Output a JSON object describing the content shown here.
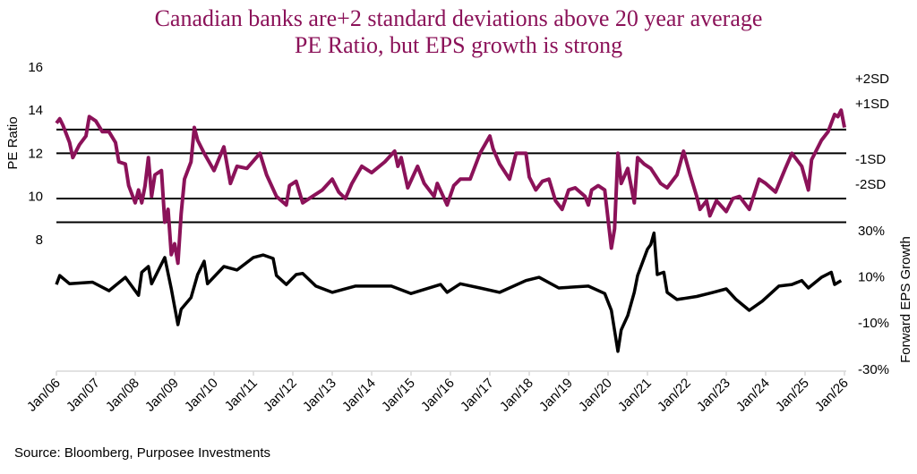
{
  "chart_data": {
    "type": "line",
    "title": [
      "Canadian banks are+2 standard deviations above 20 year average",
      "PE Ratio, but EPS growth is strong"
    ],
    "source": "Source: Bloomberg, Purposee Investments",
    "ylabel_left": "PE Ratio",
    "ylabel_right": "Forward EPS Growth",
    "yticks_left": [
      8,
      10,
      12,
      14,
      16
    ],
    "ylim_left": [
      8,
      16
    ],
    "yticks_right": [
      "30%",
      "10%",
      "-10%",
      "-30%"
    ],
    "yticks_right_values": [
      30,
      10,
      -10,
      -30
    ],
    "xticks": [
      "Jan/06",
      "Jan/07",
      "Jan/08",
      "Jan/09",
      "Jan/10",
      "Jan/11",
      "Jan/12",
      "Jan/13",
      "Jan/14",
      "Jan/15",
      "Jan/16",
      "Jan/17",
      "Jan/18",
      "Jan/19",
      "Jan/20",
      "Jan/21",
      "Jan/22",
      "Jan/23",
      "Jan/24",
      "Jan/25",
      "Jan/26"
    ],
    "xlim": [
      "2006-01",
      "2026-03"
    ],
    "grid": false,
    "sd_lines": [
      13.1,
      12.0,
      9.9,
      8.8
    ],
    "sd_labels": [
      "+2SD",
      "+1SD",
      "-1SD",
      "-2SD"
    ],
    "colors": {
      "pe": "#8B1259",
      "eps": "#000000",
      "title": "#8B1259"
    },
    "series": [
      {
        "axis": "left",
        "points": [
          [
            "2006-01",
            13.4
          ],
          [
            "2006-02",
            13.6
          ],
          [
            "2006-03",
            13.3
          ],
          [
            "2006-05",
            12.5
          ],
          [
            "2006-06",
            11.8
          ],
          [
            "2006-08",
            12.4
          ],
          [
            "2006-10",
            12.8
          ],
          [
            "2006-11",
            13.7
          ],
          [
            "2007-01",
            13.5
          ],
          [
            "2007-03",
            13.0
          ],
          [
            "2007-05",
            13.0
          ],
          [
            "2007-07",
            12.5
          ],
          [
            "2007-08",
            11.6
          ],
          [
            "2007-10",
            11.5
          ],
          [
            "2007-11",
            10.5
          ],
          [
            "2008-01",
            9.7
          ],
          [
            "2008-02",
            10.3
          ],
          [
            "2008-03",
            9.7
          ],
          [
            "2008-04",
            10.5
          ],
          [
            "2008-05",
            11.8
          ],
          [
            "2008-06",
            10.0
          ],
          [
            "2008-07",
            11.0
          ],
          [
            "2008-09",
            11.2
          ],
          [
            "2008-10",
            8.8
          ],
          [
            "2008-11",
            9.4
          ],
          [
            "2008-12",
            7.3
          ],
          [
            "2009-01",
            7.8
          ],
          [
            "2009-02",
            6.9
          ],
          [
            "2009-03",
            9.2
          ],
          [
            "2009-04",
            10.8
          ],
          [
            "2009-06",
            11.6
          ],
          [
            "2009-07",
            13.2
          ],
          [
            "2009-08",
            12.6
          ],
          [
            "2009-10",
            12.0
          ],
          [
            "2010-01",
            11.2
          ],
          [
            "2010-04",
            12.3
          ],
          [
            "2010-06",
            10.6
          ],
          [
            "2010-08",
            11.4
          ],
          [
            "2010-11",
            11.3
          ],
          [
            "2011-03",
            12.0
          ],
          [
            "2011-05",
            11.0
          ],
          [
            "2011-08",
            10.0
          ],
          [
            "2011-11",
            9.6
          ],
          [
            "2011-12",
            10.5
          ],
          [
            "2012-02",
            10.7
          ],
          [
            "2012-04",
            9.7
          ],
          [
            "2012-07",
            10.0
          ],
          [
            "2012-10",
            10.3
          ],
          [
            "2013-01",
            10.8
          ],
          [
            "2013-03",
            10.2
          ],
          [
            "2013-05",
            9.9
          ],
          [
            "2013-07",
            10.6
          ],
          [
            "2013-10",
            11.4
          ],
          [
            "2014-01",
            11.1
          ],
          [
            "2014-05",
            11.6
          ],
          [
            "2014-08",
            12.1
          ],
          [
            "2014-09",
            11.4
          ],
          [
            "2014-10",
            11.8
          ],
          [
            "2014-12",
            10.4
          ],
          [
            "2015-03",
            11.4
          ],
          [
            "2015-05",
            10.6
          ],
          [
            "2015-08",
            10.0
          ],
          [
            "2015-09",
            10.6
          ],
          [
            "2015-12",
            9.6
          ],
          [
            "2016-02",
            10.5
          ],
          [
            "2016-04",
            10.8
          ],
          [
            "2016-07",
            10.8
          ],
          [
            "2016-10",
            12.0
          ],
          [
            "2017-01",
            12.8
          ],
          [
            "2017-02",
            12.2
          ],
          [
            "2017-04",
            11.5
          ],
          [
            "2017-07",
            10.8
          ],
          [
            "2017-09",
            12.0
          ],
          [
            "2017-12",
            12.0
          ],
          [
            "2018-01",
            10.9
          ],
          [
            "2018-03",
            10.3
          ],
          [
            "2018-05",
            10.7
          ],
          [
            "2018-07",
            10.8
          ],
          [
            "2018-09",
            9.8
          ],
          [
            "2018-11",
            9.4
          ],
          [
            "2019-01",
            10.3
          ],
          [
            "2019-03",
            10.4
          ],
          [
            "2019-06",
            10.0
          ],
          [
            "2019-07",
            9.6
          ],
          [
            "2019-08",
            10.3
          ],
          [
            "2019-10",
            10.5
          ],
          [
            "2019-12",
            10.3
          ],
          [
            "2020-02",
            7.6
          ],
          [
            "2020-03",
            8.5
          ],
          [
            "2020-04",
            12.0
          ],
          [
            "2020-05",
            10.6
          ],
          [
            "2020-07",
            11.3
          ],
          [
            "2020-09",
            9.7
          ],
          [
            "2020-10",
            11.8
          ],
          [
            "2020-12",
            11.5
          ],
          [
            "2021-02",
            11.3
          ],
          [
            "2021-05",
            10.6
          ],
          [
            "2021-07",
            10.4
          ],
          [
            "2021-10",
            11.0
          ],
          [
            "2021-12",
            12.1
          ],
          [
            "2022-02",
            11.0
          ],
          [
            "2022-04",
            10.0
          ],
          [
            "2022-05",
            9.4
          ],
          [
            "2022-07",
            9.8
          ],
          [
            "2022-08",
            9.1
          ],
          [
            "2022-10",
            9.8
          ],
          [
            "2023-01",
            9.3
          ],
          [
            "2023-03",
            9.9
          ],
          [
            "2023-05",
            10.0
          ],
          [
            "2023-07",
            9.6
          ],
          [
            "2023-08",
            9.4
          ],
          [
            "2023-11",
            10.8
          ],
          [
            "2024-01",
            10.6
          ],
          [
            "2024-04",
            10.2
          ],
          [
            "2024-07",
            11.3
          ],
          [
            "2024-09",
            12.0
          ],
          [
            "2024-12",
            11.4
          ],
          [
            "2025-02",
            10.3
          ],
          [
            "2025-03",
            11.7
          ],
          [
            "2025-06",
            12.6
          ],
          [
            "2025-08",
            13.0
          ],
          [
            "2025-10",
            13.8
          ],
          [
            "2025-11",
            13.7
          ],
          [
            "2025-12",
            14.0
          ],
          [
            "2026-01",
            13.2
          ]
        ]
      },
      {
        "axis": "right",
        "points": [
          [
            "2006-01",
            6.7
          ],
          [
            "2006-02",
            10.6
          ],
          [
            "2006-05",
            7
          ],
          [
            "2006-12",
            7.7
          ],
          [
            "2007-05",
            4.0
          ],
          [
            "2007-10",
            9.8
          ],
          [
            "2008-02",
            2
          ],
          [
            "2008-03",
            12
          ],
          [
            "2008-05",
            14.5
          ],
          [
            "2008-06",
            7
          ],
          [
            "2008-10",
            18.4
          ],
          [
            "2008-12",
            4.8
          ],
          [
            "2009-01",
            -3
          ],
          [
            "2009-02",
            -10.7
          ],
          [
            "2009-03",
            -4
          ],
          [
            "2009-06",
            1
          ],
          [
            "2009-08",
            11
          ],
          [
            "2009-10",
            16.8
          ],
          [
            "2009-11",
            7
          ],
          [
            "2010-04",
            14.5
          ],
          [
            "2010-08",
            13
          ],
          [
            "2011-01",
            18.4
          ],
          [
            "2011-04",
            19.5
          ],
          [
            "2011-07",
            18
          ],
          [
            "2011-08",
            10.6
          ],
          [
            "2011-11",
            6.7
          ],
          [
            "2012-02",
            11
          ],
          [
            "2012-04",
            11.5
          ],
          [
            "2012-08",
            6
          ],
          [
            "2013-01",
            3.3
          ],
          [
            "2013-08",
            6
          ],
          [
            "2014-07",
            6
          ],
          [
            "2015-01",
            2.8
          ],
          [
            "2015-10",
            6.7
          ],
          [
            "2015-12",
            3.3
          ],
          [
            "2016-04",
            7
          ],
          [
            "2016-10",
            5.2
          ],
          [
            "2017-04",
            3.3
          ],
          [
            "2017-12",
            8.4
          ],
          [
            "2018-04",
            9.8
          ],
          [
            "2018-10",
            5.2
          ],
          [
            "2019-07",
            6
          ],
          [
            "2019-12",
            2.8
          ],
          [
            "2020-02",
            -4.5
          ],
          [
            "2020-04",
            -22.3
          ],
          [
            "2020-05",
            -13
          ],
          [
            "2020-07",
            -6.8
          ],
          [
            "2020-09",
            3.3
          ],
          [
            "2020-10",
            10.6
          ],
          [
            "2021-01",
            22
          ],
          [
            "2021-02",
            24
          ],
          [
            "2021-03",
            29
          ],
          [
            "2021-04",
            11
          ],
          [
            "2021-06",
            12
          ],
          [
            "2021-07",
            3.3
          ],
          [
            "2021-10",
            0.2
          ],
          [
            "2022-04",
            1.5
          ],
          [
            "2022-09",
            3.3
          ],
          [
            "2023-01",
            4.8
          ],
          [
            "2023-04",
            0.2
          ],
          [
            "2023-08",
            -4.5
          ],
          [
            "2023-12",
            -0.5
          ],
          [
            "2024-05",
            6
          ],
          [
            "2024-09",
            6.7
          ],
          [
            "2024-12",
            8.4
          ],
          [
            "2025-02",
            5.2
          ],
          [
            "2025-06",
            9.8
          ],
          [
            "2025-09",
            12
          ],
          [
            "2025-10",
            6.7
          ],
          [
            "2025-12",
            8.4
          ]
        ]
      }
    ]
  }
}
